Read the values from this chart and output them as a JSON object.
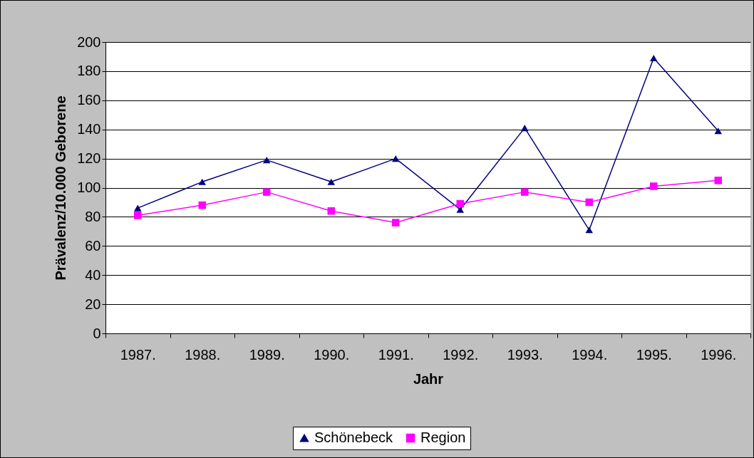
{
  "chart_data": {
    "type": "line",
    "xlabel": "Jahr",
    "ylabel": "Prävalenz/10.000 Geborene",
    "categories": [
      "1987.",
      "1988.",
      "1989.",
      "1990.",
      "1991.",
      "1992.",
      "1993.",
      "1994.",
      "1995.",
      "1996."
    ],
    "series": [
      {
        "name": "Schönebeck",
        "color": "#000080",
        "marker": "triangle",
        "values": [
          86,
          104,
          119,
          104,
          120,
          85,
          141,
          71,
          189,
          139
        ]
      },
      {
        "name": "Region",
        "color": "#ff00ff",
        "marker": "square",
        "values": [
          81,
          88,
          97,
          84,
          76,
          89,
          97,
          90,
          101,
          105
        ]
      }
    ],
    "ylim": [
      0,
      200
    ],
    "yticks": [
      0,
      20,
      40,
      60,
      80,
      100,
      120,
      140,
      160,
      180,
      200
    ],
    "grid": "y",
    "legend": "bottom",
    "line_style": "solid"
  }
}
